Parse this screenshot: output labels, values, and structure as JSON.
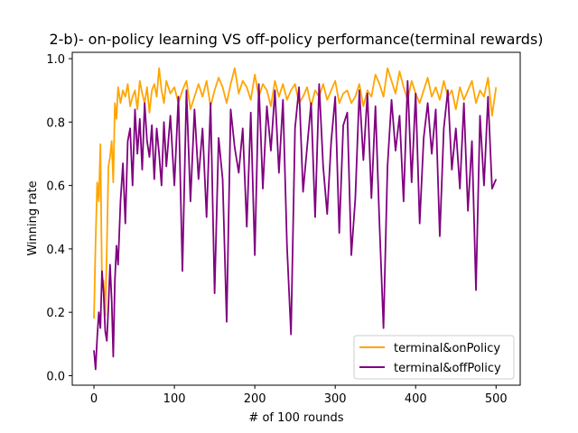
{
  "chart_data": {
    "type": "line",
    "title": "2-b)- on-policy learning VS off-policy performance(terminal rewards)",
    "xlabel": "# of 100 rounds",
    "ylabel": "Winning rate",
    "xlim": [
      -27,
      530
    ],
    "ylim": [
      -0.03,
      1.02
    ],
    "xticks": [
      0,
      100,
      200,
      300,
      400,
      500
    ],
    "yticks": [
      0.0,
      0.2,
      0.4,
      0.6,
      0.8,
      1.0
    ],
    "xtick_labels": [
      "0",
      "100",
      "200",
      "300",
      "400",
      "500"
    ],
    "ytick_labels": [
      "0.0",
      "0.2",
      "0.4",
      "0.6",
      "0.8",
      "1.0"
    ],
    "grid": false,
    "legend_position": "lower-right",
    "series": [
      {
        "name": "terminal&onPolicy",
        "color": "#ffa500",
        "x": [
          0,
          2,
          4,
          6,
          8,
          10,
          12,
          14,
          16,
          18,
          20,
          22,
          24,
          26,
          28,
          30,
          33,
          36,
          39,
          42,
          45,
          48,
          51,
          54,
          57,
          60,
          63,
          66,
          69,
          72,
          75,
          78,
          81,
          84,
          87,
          90,
          95,
          100,
          105,
          110,
          115,
          120,
          125,
          130,
          135,
          140,
          145,
          150,
          155,
          160,
          165,
          170,
          175,
          180,
          185,
          190,
          195,
          200,
          205,
          210,
          215,
          220,
          225,
          230,
          235,
          240,
          245,
          250,
          255,
          260,
          265,
          270,
          275,
          280,
          285,
          290,
          295,
          300,
          305,
          310,
          315,
          320,
          325,
          330,
          335,
          340,
          345,
          350,
          355,
          360,
          365,
          370,
          375,
          380,
          385,
          390,
          395,
          400,
          405,
          410,
          415,
          420,
          425,
          430,
          435,
          440,
          445,
          450,
          455,
          460,
          465,
          470,
          475,
          480,
          485,
          490,
          495,
          500
        ],
        "y": [
          0.18,
          0.42,
          0.61,
          0.55,
          0.73,
          0.28,
          0.3,
          0.19,
          0.4,
          0.66,
          0.69,
          0.74,
          0.61,
          0.86,
          0.81,
          0.91,
          0.86,
          0.9,
          0.88,
          0.92,
          0.85,
          0.88,
          0.9,
          0.84,
          0.93,
          0.89,
          0.86,
          0.91,
          0.83,
          0.9,
          0.92,
          0.88,
          0.97,
          0.9,
          0.86,
          0.93,
          0.89,
          0.91,
          0.86,
          0.9,
          0.93,
          0.84,
          0.88,
          0.92,
          0.88,
          0.93,
          0.85,
          0.9,
          0.94,
          0.91,
          0.86,
          0.92,
          0.97,
          0.89,
          0.93,
          0.91,
          0.87,
          0.95,
          0.88,
          0.92,
          0.9,
          0.85,
          0.93,
          0.88,
          0.92,
          0.87,
          0.9,
          0.92,
          0.86,
          0.88,
          0.91,
          0.85,
          0.9,
          0.88,
          0.92,
          0.87,
          0.9,
          0.93,
          0.86,
          0.89,
          0.9,
          0.86,
          0.88,
          0.92,
          0.85,
          0.9,
          0.88,
          0.95,
          0.92,
          0.88,
          0.97,
          0.93,
          0.89,
          0.96,
          0.91,
          0.87,
          0.93,
          0.89,
          0.86,
          0.9,
          0.94,
          0.88,
          0.91,
          0.87,
          0.93,
          0.88,
          0.9,
          0.84,
          0.91,
          0.87,
          0.9,
          0.93,
          0.86,
          0.9,
          0.88,
          0.94,
          0.82,
          0.91
        ]
      },
      {
        "name": "terminal&offPolicy",
        "color": "#800080",
        "x": [
          0,
          2,
          4,
          6,
          8,
          10,
          12,
          14,
          16,
          18,
          20,
          22,
          24,
          26,
          28,
          30,
          33,
          36,
          39,
          42,
          45,
          48,
          51,
          54,
          57,
          60,
          63,
          66,
          69,
          72,
          75,
          78,
          81,
          84,
          87,
          90,
          95,
          100,
          105,
          110,
          115,
          120,
          125,
          130,
          135,
          140,
          145,
          150,
          155,
          160,
          165,
          170,
          175,
          180,
          185,
          190,
          195,
          200,
          205,
          210,
          215,
          220,
          225,
          230,
          235,
          240,
          245,
          250,
          255,
          260,
          265,
          270,
          275,
          280,
          285,
          290,
          295,
          300,
          305,
          310,
          315,
          320,
          325,
          330,
          335,
          340,
          345,
          350,
          355,
          360,
          365,
          370,
          375,
          380,
          385,
          390,
          395,
          400,
          405,
          410,
          415,
          420,
          425,
          430,
          435,
          440,
          445,
          450,
          455,
          460,
          465,
          470,
          475,
          480,
          485,
          490,
          495,
          500
        ],
        "y": [
          0.08,
          0.02,
          0.12,
          0.2,
          0.15,
          0.33,
          0.26,
          0.14,
          0.11,
          0.22,
          0.35,
          0.24,
          0.06,
          0.3,
          0.41,
          0.35,
          0.55,
          0.67,
          0.48,
          0.74,
          0.78,
          0.6,
          0.84,
          0.7,
          0.81,
          0.65,
          0.86,
          0.74,
          0.69,
          0.79,
          0.62,
          0.78,
          0.7,
          0.6,
          0.8,
          0.66,
          0.82,
          0.6,
          0.88,
          0.33,
          0.9,
          0.55,
          0.84,
          0.62,
          0.78,
          0.5,
          0.86,
          0.26,
          0.75,
          0.62,
          0.17,
          0.84,
          0.72,
          0.64,
          0.78,
          0.47,
          0.83,
          0.38,
          0.92,
          0.59,
          0.85,
          0.71,
          0.9,
          0.64,
          0.87,
          0.41,
          0.13,
          0.78,
          0.91,
          0.58,
          0.72,
          0.86,
          0.5,
          0.92,
          0.66,
          0.51,
          0.74,
          0.88,
          0.45,
          0.79,
          0.83,
          0.38,
          0.56,
          0.9,
          0.68,
          0.89,
          0.56,
          0.85,
          0.48,
          0.15,
          0.66,
          0.87,
          0.71,
          0.82,
          0.55,
          0.93,
          0.61,
          0.89,
          0.48,
          0.75,
          0.86,
          0.7,
          0.84,
          0.44,
          0.78,
          0.9,
          0.65,
          0.78,
          0.59,
          0.86,
          0.52,
          0.74,
          0.27,
          0.82,
          0.6,
          0.88,
          0.59,
          0.62
        ]
      }
    ]
  }
}
